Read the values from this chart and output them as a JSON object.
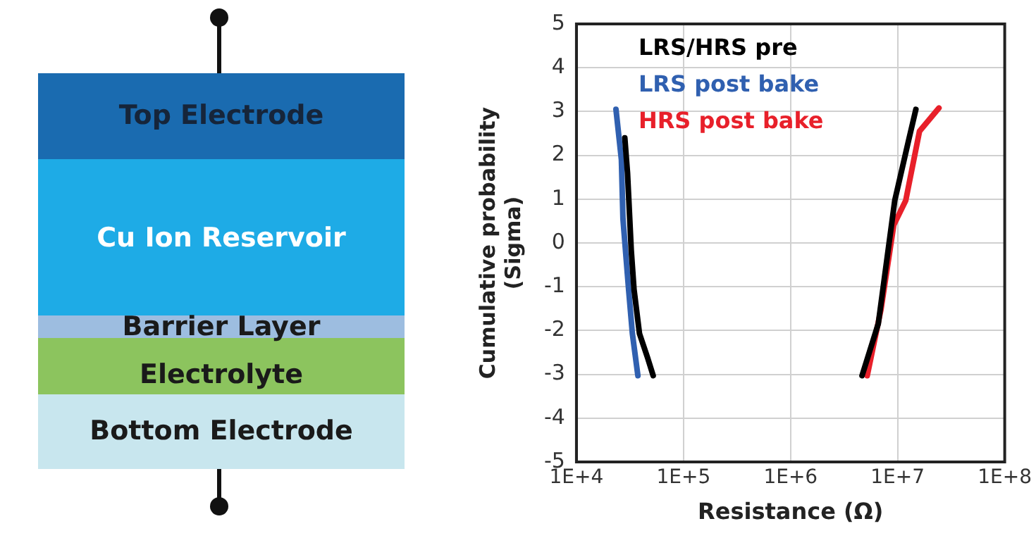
{
  "chart_data": [
    {
      "type": "other",
      "annotations": [
        "Top Electrode",
        "Cu Ion Reservoir",
        "Barrier Layer",
        "Electrolyte",
        "Bottom Electrode"
      ]
    },
    {
      "type": "line",
      "xlabel": "Resistance (Ω)",
      "ylabel": "Cumulative probability\n(Sigma)",
      "log": "x",
      "xlim": [
        10000,
        100000000
      ],
      "xticks": [
        {
          "value": 10000,
          "label": "1E+4"
        },
        {
          "value": 100000,
          "label": "1E+5"
        },
        {
          "value": 1000000,
          "label": "1E+6"
        },
        {
          "value": 10000000,
          "label": "1E+7"
        },
        {
          "value": 100000000,
          "label": "1E+8"
        }
      ],
      "ylim": [
        -5,
        5
      ],
      "yticks": [
        -5,
        -4,
        -3,
        -2,
        -1,
        0,
        1,
        2,
        3,
        4,
        5
      ],
      "grid": true,
      "legend": "top left",
      "marker": "none",
      "line_style": "solid",
      "series": [
        {
          "name": "LRS/HRS pre",
          "color": "#000000",
          "x": [
            28300,
            30000,
            32500,
            34500,
            38800,
            46300,
            52100,
            null,
            4650000,
            6600000,
            9400000,
            12600000,
            14800000
          ],
          "values": [
            2.4,
            1.6,
            -0.16,
            -1.06,
            -2.07,
            -2.63,
            -3.03,
            null,
            -3.03,
            -1.84,
            0.97,
            2.32,
            3.05
          ]
        },
        {
          "name": "LRS post bake",
          "color": "#3060b0",
          "x": [
            23400,
            26300,
            27200,
            30700,
            33300,
            37500
          ],
          "values": [
            3.05,
            1.9,
            0.55,
            -1.06,
            -2.07,
            -3.03
          ]
        },
        {
          "name": "HRS post bake",
          "color": "#e8202a",
          "x": [
            5200000,
            7000000,
            9200000,
            11900000,
            16000000,
            24300000
          ],
          "values": [
            -3.03,
            -1.51,
            0.41,
            0.97,
            2.55,
            3.08
          ]
        }
      ]
    }
  ]
}
